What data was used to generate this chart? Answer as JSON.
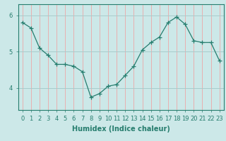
{
  "x": [
    0,
    1,
    2,
    3,
    4,
    5,
    6,
    7,
    8,
    9,
    10,
    11,
    12,
    13,
    14,
    15,
    16,
    17,
    18,
    19,
    20,
    21,
    22,
    23
  ],
  "y": [
    5.8,
    5.65,
    5.1,
    4.9,
    4.65,
    4.65,
    4.6,
    4.45,
    3.75,
    3.85,
    4.05,
    4.1,
    4.35,
    4.6,
    5.05,
    5.25,
    5.4,
    5.8,
    5.95,
    5.75,
    5.3,
    5.25,
    5.25,
    4.75
  ],
  "line_color": "#267d6e",
  "marker": "+",
  "marker_size": 4,
  "bg_color": "#cce8e8",
  "grid_color_v": "#e8b0b0",
  "grid_color_h": "#a8cccc",
  "axis_color": "#267d6e",
  "xlabel": "Humidex (Indice chaleur)",
  "xlabel_fontsize": 7,
  "tick_fontsize": 6,
  "ylim": [
    3.4,
    6.3
  ],
  "xlim": [
    -0.5,
    23.5
  ],
  "yticks": [
    4,
    5,
    6
  ],
  "xticks": [
    0,
    1,
    2,
    3,
    4,
    5,
    6,
    7,
    8,
    9,
    10,
    11,
    12,
    13,
    14,
    15,
    16,
    17,
    18,
    19,
    20,
    21,
    22,
    23
  ]
}
